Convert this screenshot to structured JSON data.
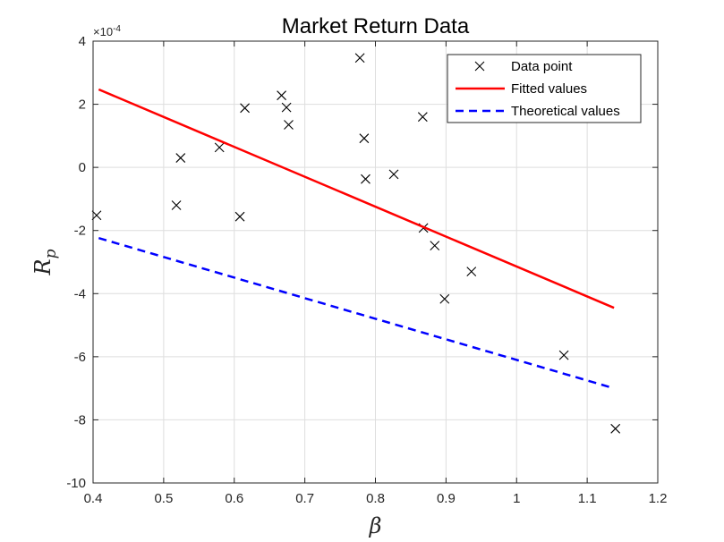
{
  "chart_data": {
    "type": "scatter",
    "title": "Market Return Data",
    "xlabel": "β",
    "ylabel_main": "R",
    "ylabel_sub": "p",
    "y_exponent_base": "×10",
    "y_exponent_power": "-4",
    "xlim": [
      0.4,
      1.2
    ],
    "ylim": [
      -10,
      4
    ],
    "x_ticks": [
      0.4,
      0.5,
      0.6,
      0.7,
      0.8,
      0.9,
      1,
      1.1,
      1.2
    ],
    "x_tick_labels": [
      "0.4",
      "0.5",
      "0.6",
      "0.7",
      "0.8",
      "0.9",
      "1",
      "1.1",
      "1.2"
    ],
    "y_ticks": [
      4,
      2,
      0,
      -2,
      -4,
      -6,
      -8,
      -10
    ],
    "y_tick_labels": [
      "4",
      "2",
      "0",
      "-2",
      "-4",
      "-6",
      "-8",
      "-10"
    ],
    "grid": true,
    "legend_position": "top-right",
    "series": [
      {
        "name": "Data point",
        "kind": "marker",
        "marker": "x",
        "color": "#000000",
        "points": [
          [
            0.405,
            -1.52
          ],
          [
            0.518,
            -1.2
          ],
          [
            0.524,
            0.3
          ],
          [
            0.579,
            0.63
          ],
          [
            0.608,
            -1.56
          ],
          [
            0.615,
            1.88
          ],
          [
            0.667,
            2.28
          ],
          [
            0.674,
            1.9
          ],
          [
            0.677,
            1.35
          ],
          [
            0.778,
            3.47
          ],
          [
            0.784,
            0.92
          ],
          [
            0.786,
            -0.37
          ],
          [
            0.826,
            -0.22
          ],
          [
            0.867,
            1.6
          ],
          [
            0.868,
            -1.92
          ],
          [
            0.884,
            -2.48
          ],
          [
            0.898,
            -4.17
          ],
          [
            0.936,
            -3.3
          ],
          [
            1.067,
            -5.95
          ],
          [
            1.14,
            -8.28
          ]
        ]
      },
      {
        "name": "Fitted values",
        "kind": "line",
        "dash": "solid",
        "color": "#ff0000",
        "points": [
          [
            0.408,
            2.47
          ],
          [
            1.138,
            -4.45
          ]
        ]
      },
      {
        "name": "Theoretical values",
        "kind": "line",
        "dash": "dashed",
        "color": "#0000ff",
        "points": [
          [
            0.408,
            -2.24
          ],
          [
            1.138,
            -7.0
          ]
        ]
      }
    ]
  }
}
